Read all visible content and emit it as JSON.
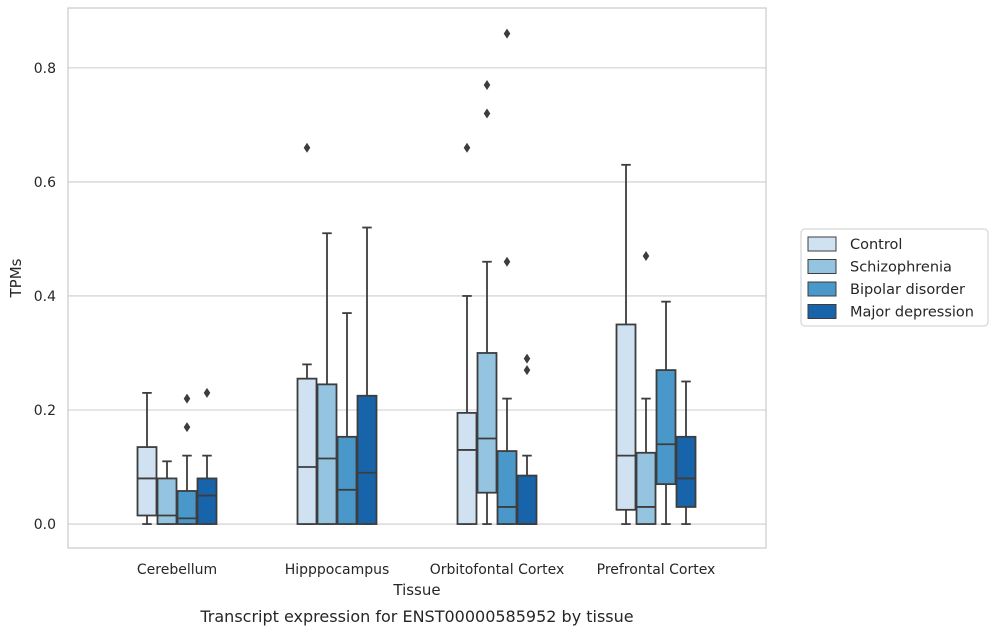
{
  "caption": "Transcript expression for ENST00000585952 by tissue",
  "chart_data": {
    "type": "box",
    "xlabel": "Tissue",
    "ylabel": "TPMs",
    "ylim": [
      -0.042,
      0.905
    ],
    "yticks": [
      0.0,
      0.2,
      0.4,
      0.6,
      0.8
    ],
    "ytick_labels": [
      "0.0",
      "0.2",
      "0.4",
      "0.6",
      "0.8"
    ],
    "grid": "horizontal",
    "legend_position": "right",
    "categories": [
      "Cerebellum",
      "Hipppocampus",
      "Orbitofontal Cortex",
      "Prefrontal Cortex"
    ],
    "series": [
      {
        "name": "Control",
        "color": "#d0e1f2",
        "boxes": [
          {
            "whislo": 0.0,
            "q1": 0.015,
            "med": 0.08,
            "q3": 0.135,
            "whishi": 0.23,
            "fliers": []
          },
          {
            "whislo": 0.0,
            "q1": 0.0,
            "med": 0.1,
            "q3": 0.255,
            "whishi": 0.28,
            "fliers": [
              0.66
            ]
          },
          {
            "whislo": 0.0,
            "q1": 0.0,
            "med": 0.13,
            "q3": 0.195,
            "whishi": 0.4,
            "fliers": [
              0.66
            ]
          },
          {
            "whislo": 0.0,
            "q1": 0.025,
            "med": 0.12,
            "q3": 0.35,
            "whishi": 0.63,
            "fliers": []
          }
        ]
      },
      {
        "name": "Schizophrenia",
        "color": "#94c4df",
        "boxes": [
          {
            "whislo": 0.0,
            "q1": 0.0,
            "med": 0.015,
            "q3": 0.08,
            "whishi": 0.11,
            "fliers": []
          },
          {
            "whislo": 0.0,
            "q1": 0.0,
            "med": 0.115,
            "q3": 0.245,
            "whishi": 0.51,
            "fliers": []
          },
          {
            "whislo": 0.0,
            "q1": 0.055,
            "med": 0.15,
            "q3": 0.3,
            "whishi": 0.46,
            "fliers": [
              0.72,
              0.77
            ]
          },
          {
            "whislo": 0.0,
            "q1": 0.0,
            "med": 0.03,
            "q3": 0.125,
            "whishi": 0.22,
            "fliers": [
              0.47
            ]
          }
        ]
      },
      {
        "name": "Bipolar disorder",
        "color": "#4a98c9",
        "boxes": [
          {
            "whislo": 0.0,
            "q1": 0.0,
            "med": 0.01,
            "q3": 0.058,
            "whishi": 0.12,
            "fliers": [
              0.17,
              0.22
            ]
          },
          {
            "whislo": 0.0,
            "q1": 0.0,
            "med": 0.06,
            "q3": 0.153,
            "whishi": 0.37,
            "fliers": []
          },
          {
            "whislo": 0.0,
            "q1": 0.0,
            "med": 0.03,
            "q3": 0.128,
            "whishi": 0.22,
            "fliers": [
              0.46,
              0.86
            ]
          },
          {
            "whislo": 0.0,
            "q1": 0.07,
            "med": 0.14,
            "q3": 0.27,
            "whishi": 0.39,
            "fliers": []
          }
        ]
      },
      {
        "name": "Major depression",
        "color": "#1764ab",
        "boxes": [
          {
            "whislo": 0.0,
            "q1": 0.0,
            "med": 0.05,
            "q3": 0.08,
            "whishi": 0.12,
            "fliers": [
              0.23
            ]
          },
          {
            "whislo": 0.0,
            "q1": 0.0,
            "med": 0.09,
            "q3": 0.225,
            "whishi": 0.52,
            "fliers": []
          },
          {
            "whislo": 0.0,
            "q1": 0.0,
            "med": 0.0,
            "q3": 0.085,
            "whishi": 0.12,
            "fliers": [
              0.27,
              0.29
            ]
          },
          {
            "whislo": 0.0,
            "q1": 0.03,
            "med": 0.08,
            "q3": 0.153,
            "whishi": 0.25,
            "fliers": []
          }
        ]
      }
    ]
  }
}
